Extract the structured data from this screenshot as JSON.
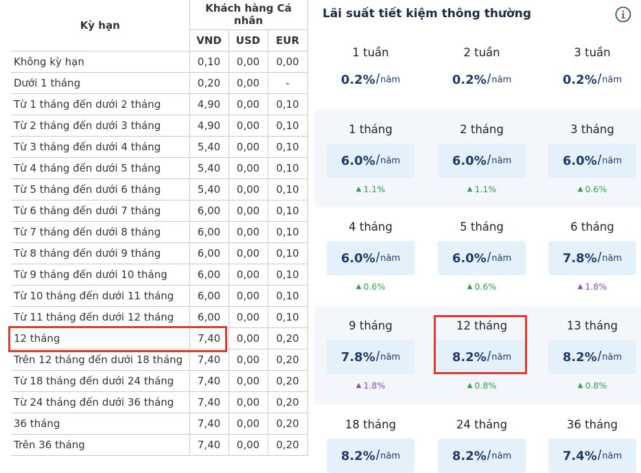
{
  "left_table": {
    "header_term": "Kỳ hạn",
    "header_group": "Khách hàng Cá nhân",
    "currencies": [
      "VND",
      "USD",
      "EUR"
    ],
    "rows": [
      {
        "term": "Không kỳ hạn",
        "vnd": "0,10",
        "usd": "0,00",
        "eur": "0,00"
      },
      {
        "term": "Dưới 1 tháng",
        "vnd": "0,20",
        "usd": "0,00",
        "eur": "-"
      },
      {
        "term": "Từ 1 tháng đến dưới 2 tháng",
        "vnd": "4,90",
        "usd": "0,00",
        "eur": "0,10"
      },
      {
        "term": "Từ 2 tháng đến dưới 3 tháng",
        "vnd": "4,90",
        "usd": "0,00",
        "eur": "0,10"
      },
      {
        "term": "Từ 3 tháng đến dưới 4 tháng",
        "vnd": "5,40",
        "usd": "0,00",
        "eur": "0,10"
      },
      {
        "term": "Từ 4 tháng đến dưới 5 tháng",
        "vnd": "5,40",
        "usd": "0,00",
        "eur": "0,10"
      },
      {
        "term": "Từ 5 tháng đến dưới 6 tháng",
        "vnd": "5,40",
        "usd": "0,00",
        "eur": "0,10"
      },
      {
        "term": "Từ 6 tháng đến dưới 7 tháng",
        "vnd": "6,00",
        "usd": "0,00",
        "eur": "0,10"
      },
      {
        "term": "Từ 7 tháng đến dưới 8 tháng",
        "vnd": "6,00",
        "usd": "0,00",
        "eur": "0,10"
      },
      {
        "term": "Từ 8 tháng đến dưới 9 tháng",
        "vnd": "6,00",
        "usd": "0,00",
        "eur": "0,10"
      },
      {
        "term": "Từ 9 tháng đến dưới 10 tháng",
        "vnd": "6,00",
        "usd": "0,00",
        "eur": "0,10"
      },
      {
        "term": "Từ 10 tháng đến dưới 11 tháng",
        "vnd": "6,00",
        "usd": "0,00",
        "eur": "0,10"
      },
      {
        "term": "Từ 11 tháng đến dưới 12 tháng",
        "vnd": "6,00",
        "usd": "0,00",
        "eur": "0,10"
      },
      {
        "term": "12 tháng",
        "vnd": "7,40",
        "usd": "0,00",
        "eur": "0,20"
      },
      {
        "term": "Trên 12 tháng đến dưới 18 tháng",
        "vnd": "7,40",
        "usd": "0,00",
        "eur": "0,20"
      },
      {
        "term": "Từ 18 tháng đến dưới 24 tháng",
        "vnd": "7,40",
        "usd": "0,00",
        "eur": "0,20"
      },
      {
        "term": "Từ 24 tháng đến dưới 36 tháng",
        "vnd": "7,40",
        "usd": "0,00",
        "eur": "0,20"
      },
      {
        "term": "36 tháng",
        "vnd": "7,40",
        "usd": "0,00",
        "eur": "0,20"
      },
      {
        "term": "Trên 36 tháng",
        "vnd": "7,40",
        "usd": "0,00",
        "eur": "0,20"
      }
    ]
  },
  "right_panel": {
    "title": "Lãi suất tiết kiệm thông thường",
    "info_icon": "info-icon",
    "unit": "năm",
    "slash": "/",
    "rows": [
      {
        "items": [
          {
            "term": "1 tuần",
            "rate": "0.2%",
            "delta": null
          },
          {
            "term": "2 tuần",
            "rate": "0.2%",
            "delta": null
          },
          {
            "term": "3 tuần",
            "rate": "0.2%",
            "delta": null
          }
        ]
      },
      {
        "items": [
          {
            "term": "1 tháng",
            "rate": "6.0%",
            "delta": "1.1%",
            "delta_color": "green"
          },
          {
            "term": "2 tháng",
            "rate": "6.0%",
            "delta": "1.1%",
            "delta_color": "green"
          },
          {
            "term": "3 tháng",
            "rate": "6.0%",
            "delta": "0.6%",
            "delta_color": "green"
          }
        ]
      },
      {
        "items": [
          {
            "term": "4 tháng",
            "rate": "6.0%",
            "delta": "0.6%",
            "delta_color": "green"
          },
          {
            "term": "5 tháng",
            "rate": "6.0%",
            "delta": "0.6%",
            "delta_color": "green"
          },
          {
            "term": "6 tháng",
            "rate": "7.8%",
            "delta": "1.8%",
            "delta_color": "purple"
          }
        ]
      },
      {
        "items": [
          {
            "term": "9 tháng",
            "rate": "7.8%",
            "delta": "1.8%",
            "delta_color": "purple"
          },
          {
            "term": "12 tháng",
            "rate": "8.2%",
            "delta": "0.8%",
            "delta_color": "green"
          },
          {
            "term": "13 tháng",
            "rate": "8.2%",
            "delta": "0.8%",
            "delta_color": "green"
          }
        ]
      },
      {
        "items": [
          {
            "term": "18 tháng",
            "rate": "8.2%",
            "delta": null
          },
          {
            "term": "24 tháng",
            "rate": "8.2%",
            "delta": null
          },
          {
            "term": "36 tháng",
            "rate": "7.4%",
            "delta": null
          }
        ]
      }
    ]
  },
  "colors": {
    "highlight": "#e23a2e",
    "rate_text": "#1e3a6b",
    "delta_green": "#33a04a",
    "delta_purple": "#8a4bb7",
    "section_blue": "#f3f7fb",
    "rate_box": "#e4f0fa"
  }
}
